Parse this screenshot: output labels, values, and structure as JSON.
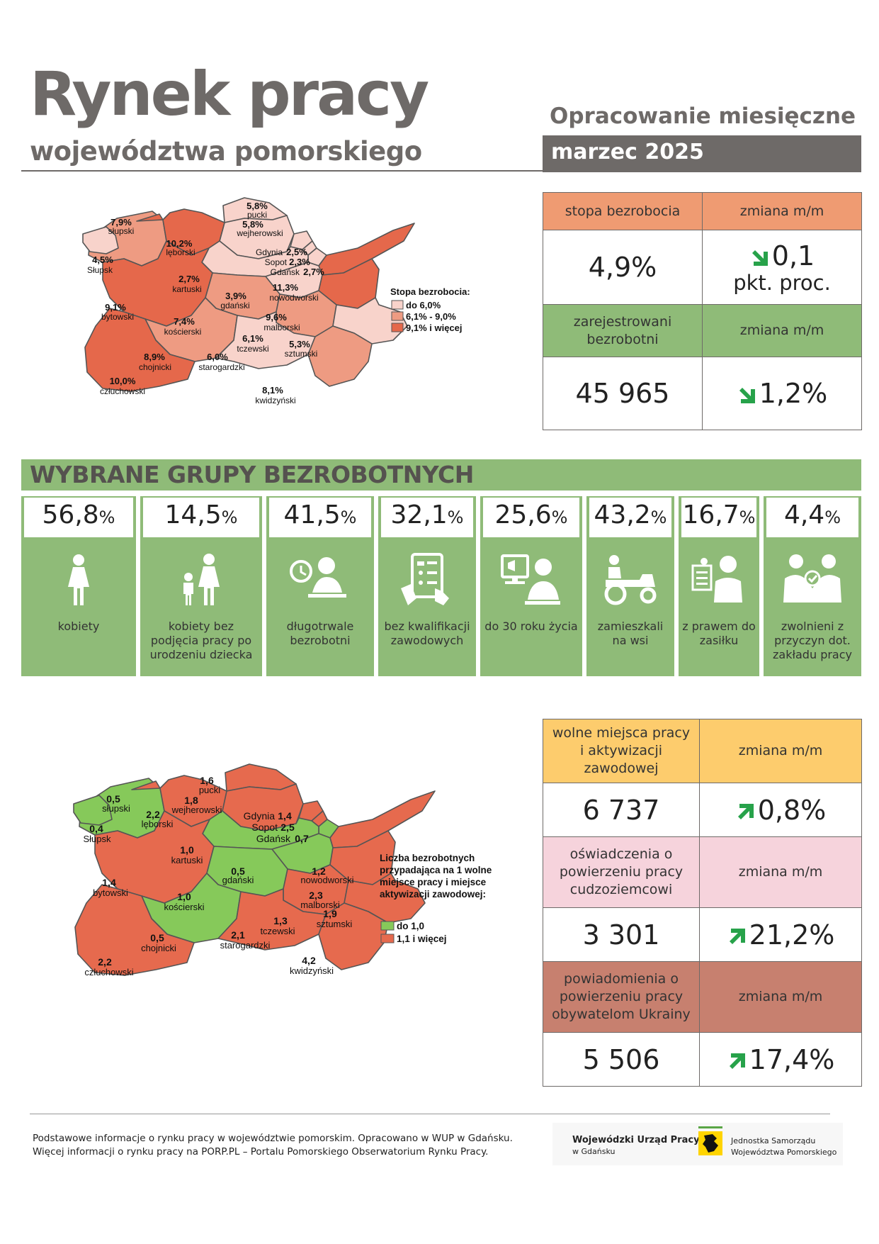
{
  "header": {
    "title": "Rynek pracy",
    "subtitle": "województwa pomorskiego",
    "period_type": "Opracowanie miesięczne",
    "period": "marzec 2025"
  },
  "unemployment": {
    "rate_label": "stopa bezrobocia",
    "change_label": "zmiana m/m",
    "rate_value": "4,9%",
    "rate_change": "0,1",
    "rate_change_unit": "pkt. proc.",
    "registered_label": "zarejestrowani bezrobotni",
    "registered_change_label": "zmiana m/m",
    "registered_value": "45 965",
    "registered_change": "1,2%",
    "colors": {
      "orange": "#ef9b72",
      "green": "#8fbb78",
      "arrow_down": "#27a24a"
    }
  },
  "map1": {
    "legend_title": "Stopa bezrobocia:",
    "legend": [
      "do 6,0%",
      "6,1% - 9,0%",
      "9,1% i więcej"
    ],
    "legend_colors": [
      "#f8d3cb",
      "#ee9b82",
      "#e5684b"
    ],
    "regions": [
      {
        "name": "pucki",
        "value": "5,8%"
      },
      {
        "name": "słupski",
        "value": "7,9%"
      },
      {
        "name": "wejherowski",
        "value": "5,8%"
      },
      {
        "name": "lęborski",
        "value": "10,2%"
      },
      {
        "name": "Słupsk",
        "value": "4,5%"
      },
      {
        "name": "Gdynia",
        "value": "2,5%"
      },
      {
        "name": "Sopot",
        "value": "2,3%"
      },
      {
        "name": "Gdańsk",
        "value": "2,7%"
      },
      {
        "name": "kartuski",
        "value": "2,7%"
      },
      {
        "name": "nowodworski",
        "value": "11,3%"
      },
      {
        "name": "bytowski",
        "value": "9,1%"
      },
      {
        "name": "gdański",
        "value": "3,9%"
      },
      {
        "name": "kościerski",
        "value": "7,4%"
      },
      {
        "name": "malborski",
        "value": "9,6%"
      },
      {
        "name": "tczewski",
        "value": "6,1%"
      },
      {
        "name": "sztumski",
        "value": "5,3%"
      },
      {
        "name": "chojnicki",
        "value": "8,9%"
      },
      {
        "name": "starogardzki",
        "value": "6,0%"
      },
      {
        "name": "człuchowski",
        "value": "10,0%"
      },
      {
        "name": "kwidzyński",
        "value": "8,1%"
      }
    ]
  },
  "groups": {
    "title": "WYBRANE GRUPY BEZROBOTNYCH",
    "items": [
      {
        "value": "56,8",
        "unit": "%",
        "label": "kobiety",
        "icon": "woman-icon"
      },
      {
        "value": "14,5",
        "unit": "%",
        "label": "kobiety bez podjęcia pracy po urodzeniu dziecka",
        "icon": "mother-child-icon"
      },
      {
        "value": "41,5",
        "unit": "%",
        "label": "długotrwale bezrobotni",
        "icon": "clock-person-icon"
      },
      {
        "value": "32,1",
        "unit": "%",
        "label": "bez kwalifikacji zawodowych",
        "icon": "tablet-checklist-icon"
      },
      {
        "value": "25,6",
        "unit": "%",
        "label": "do 30 roku życia",
        "icon": "young-person-computer-icon"
      },
      {
        "value": "43,2",
        "unit": "%",
        "label": "zamieszkali na wsi",
        "icon": "tractor-icon"
      },
      {
        "value": "16,7",
        "unit": "%",
        "label": "z prawem do zasiłku",
        "icon": "benefit-document-icon"
      },
      {
        "value": "4,4",
        "unit": "%",
        "label": "zwolnieni z przyczyn dot. zakładu pracy",
        "icon": "handshake-icon"
      }
    ]
  },
  "map2": {
    "legend_title": "Liczba bezrobotnych przypadająca na 1 wolne miejsce pracy i miejsce aktywizacji zawodowej:",
    "legend": [
      "do 1,0",
      "1,1 i więcej"
    ],
    "legend_colors": [
      "#86c95a",
      "#e66a4e"
    ],
    "regions": [
      {
        "name": "pucki",
        "value": "1,6"
      },
      {
        "name": "słupski",
        "value": "0,5"
      },
      {
        "name": "wejherowski",
        "value": "1,8"
      },
      {
        "name": "lęborski",
        "value": "2,2"
      },
      {
        "name": "Słupsk",
        "value": "0,4"
      },
      {
        "name": "Gdynia",
        "value": "1,4"
      },
      {
        "name": "Sopot",
        "value": "2,5"
      },
      {
        "name": "Gdańsk",
        "value": "0,7"
      },
      {
        "name": "kartuski",
        "value": "1,0"
      },
      {
        "name": "nowodworski",
        "value": "1,2"
      },
      {
        "name": "bytowski",
        "value": "1,4"
      },
      {
        "name": "gdański",
        "value": "0,5"
      },
      {
        "name": "kościerski",
        "value": "1,0"
      },
      {
        "name": "malborski",
        "value": "2,3"
      },
      {
        "name": "tczewski",
        "value": "1,3"
      },
      {
        "name": "sztumski",
        "value": "1,9"
      },
      {
        "name": "chojnicki",
        "value": "0,5"
      },
      {
        "name": "starogardzki",
        "value": "2,1"
      },
      {
        "name": "człuchowski",
        "value": "2,2"
      },
      {
        "name": "kwidzyński",
        "value": "4,2"
      }
    ]
  },
  "offers": {
    "vacancies_label": "wolne miejsca pracy i aktywizacji zawodowej",
    "vacancies_change_label": "zmiana m/m",
    "vacancies_value": "6 737",
    "vacancies_change": "0,8%",
    "declarations_label": "oświadczenia o powierzeniu pracy cudzoziemcowi",
    "declarations_change_label": "zmiana m/m",
    "declarations_value": "3 301",
    "declarations_change": "21,2%",
    "ukraine_label": "powiadomienia o powierzeniu pracy obywatelom Ukrainy",
    "ukraine_change_label": "zmiana m/m",
    "ukraine_value": "5 506",
    "ukraine_change": "17,4%",
    "colors": {
      "yellow": "#fdcc6d",
      "pink": "#f6d3dc",
      "brown": "#c7806f",
      "arrow_up": "#27a24a"
    }
  },
  "footer": {
    "line1": "Podstawowe informacje o rynku pracy w województwie pomorskim. Opracowano w WUP w Gdańsku.",
    "line2": "Więcej informacji o rynku pracy na PORP.PL – Portalu Pomorskiego Obserwatorium Rynku Pracy.",
    "wup_name": "Wojewódzki Urząd Pracy",
    "wup_city": "w Gdańsku",
    "js_line1": "Jednostka Samorządu",
    "js_line2": "Województwa Pomorskiego"
  }
}
